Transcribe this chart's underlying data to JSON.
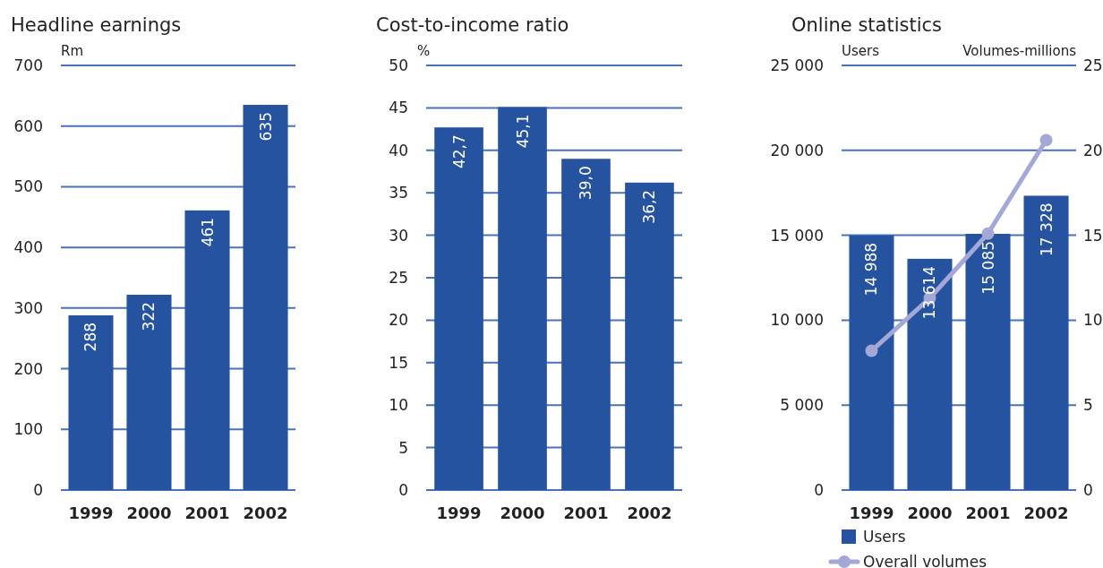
{
  "chart_data": [
    {
      "type": "bar",
      "title": "Headline earnings",
      "ylabel": "Rm",
      "categories": [
        "1999",
        "2000",
        "2001",
        "2002"
      ],
      "series": [
        {
          "color": "#2553a0",
          "values": [
            288,
            322,
            461,
            635
          ]
        }
      ],
      "ylim": [
        0,
        700
      ],
      "yticks": [
        0,
        100,
        200,
        300,
        400,
        500,
        600,
        700
      ],
      "grid": "y",
      "data_labels": true
    },
    {
      "type": "bar",
      "title": "Cost-to-income ratio",
      "ylabel": "%",
      "categories": [
        "1999",
        "2000",
        "2001",
        "2002"
      ],
      "series": [
        {
          "color": "#2553a0",
          "values": [
            42.7,
            45.1,
            39.0,
            36.2
          ],
          "value_labels": [
            "42,7",
            "45,1",
            "39,0",
            "36,2"
          ]
        }
      ],
      "ylim": [
        0,
        50
      ],
      "yticks": [
        0,
        5,
        10,
        15,
        20,
        25,
        30,
        35,
        40,
        45,
        50
      ],
      "grid": "y"
    },
    {
      "type": "bar",
      "title": "Online statistics",
      "ylabel": "Users",
      "y2label": "Volumes-millions",
      "categories": [
        "1999",
        "2000",
        "2001",
        "2002"
      ],
      "series": [
        {
          "name": "Users",
          "color": "#2553a0",
          "values": [
            14988,
            13614,
            15085,
            17328
          ],
          "value_labels": [
            "14 988",
            "13 614",
            "15 085",
            "17 328"
          ]
        },
        {
          "name": "Overall volumes",
          "type": "line",
          "axis": "y2",
          "color": "#a3a8d6",
          "marker": "circle",
          "values": [
            8.2,
            11.3,
            15.1,
            20.6
          ]
        }
      ],
      "ylim": [
        0,
        25000
      ],
      "yticks": [
        0,
        {
          "value": 5000,
          "label": "5 000"
        },
        {
          "value": 10000,
          "label": "10 000"
        },
        {
          "value": 15000,
          "label": "15 000"
        },
        {
          "value": 20000,
          "label": "20 000"
        },
        {
          "value": 25000,
          "label": "25 000"
        }
      ],
      "y2lim": [
        0,
        25
      ],
      "y2ticks": [
        0,
        5,
        10,
        15,
        20,
        25
      ],
      "grid": "y",
      "legend": "bottom"
    }
  ]
}
